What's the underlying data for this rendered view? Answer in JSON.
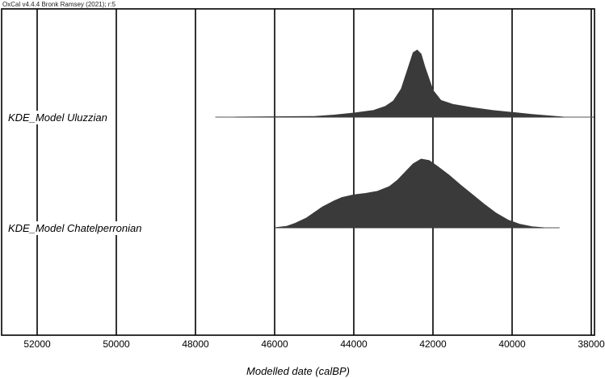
{
  "credit": "OxCal v4.4.4 Bronk Ramsey (2021); r:5",
  "colors": {
    "density_fill": "#3a3a3a",
    "gridline": "#000000",
    "range_line": "#555555",
    "frame": "#000000"
  },
  "chart_data": {
    "type": "area",
    "xlabel": "Modelled date (calBP)",
    "xlim": [
      52900,
      37900
    ],
    "x_reversed": true,
    "grid": "vertical",
    "ticks": [
      52000,
      50000,
      48000,
      46000,
      44000,
      42000,
      40000,
      38000
    ],
    "tick_labels": [
      "52000",
      "50000",
      "48000",
      "46000",
      "44000",
      "42000",
      "40000",
      "38000"
    ],
    "series": [
      {
        "name": "KDE_Model Uluzzian",
        "range": [
          47500,
          37900
        ],
        "density_x": [
          47000,
          45000,
          44500,
          44000,
          43500,
          43200,
          43000,
          42800,
          42600,
          42500,
          42400,
          42300,
          42200,
          42000,
          41800,
          41500,
          41000,
          40500,
          40000,
          39500,
          39000,
          38700
        ],
        "density_y": [
          0,
          0.01,
          0.03,
          0.06,
          0.1,
          0.16,
          0.24,
          0.42,
          0.78,
          0.96,
          1.0,
          0.94,
          0.74,
          0.4,
          0.25,
          0.19,
          0.14,
          0.1,
          0.07,
          0.04,
          0.015,
          0
        ]
      },
      {
        "name": "KDE_Model Chatelperronian",
        "range": [
          46000,
          38800
        ],
        "density_x": [
          46000,
          45700,
          45500,
          45200,
          45000,
          44800,
          44500,
          44300,
          44000,
          43700,
          43400,
          43100,
          42900,
          42700,
          42500,
          42300,
          42100,
          41900,
          41600,
          41300,
          41000,
          40700,
          40400,
          40100,
          39800,
          39500,
          39200
        ],
        "density_y": [
          0,
          0.02,
          0.06,
          0.14,
          0.22,
          0.3,
          0.39,
          0.44,
          0.48,
          0.5,
          0.53,
          0.6,
          0.69,
          0.81,
          0.93,
          1.0,
          0.98,
          0.9,
          0.77,
          0.62,
          0.48,
          0.34,
          0.21,
          0.11,
          0.05,
          0.015,
          0
        ]
      }
    ]
  }
}
